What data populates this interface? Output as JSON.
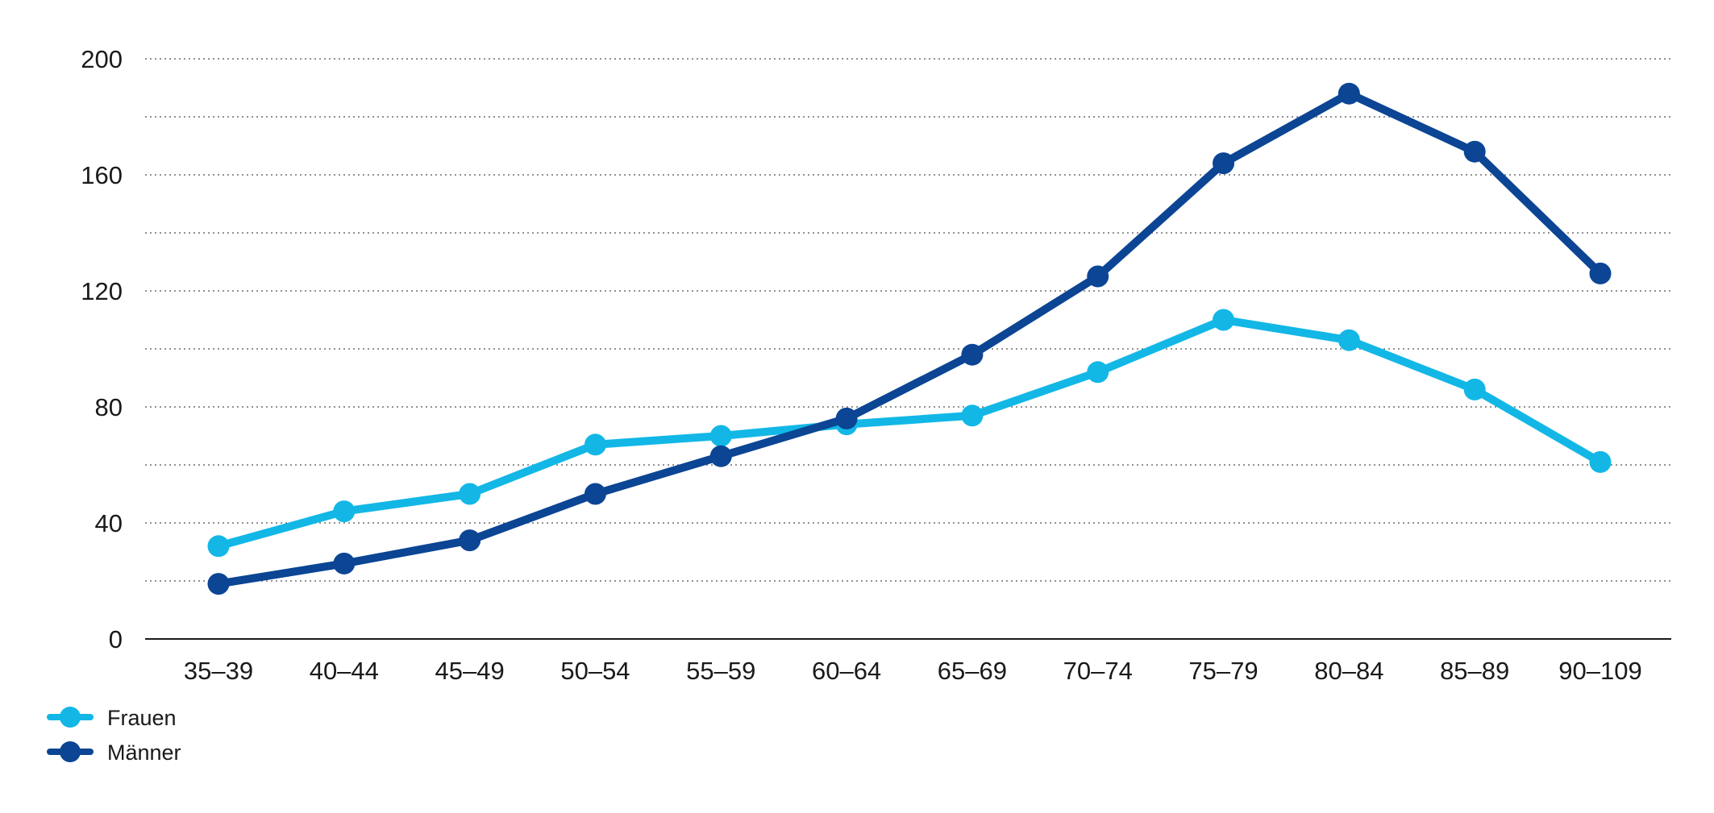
{
  "chart_data": {
    "type": "line",
    "categories": [
      "35–39",
      "40–44",
      "45–49",
      "50–54",
      "55–59",
      "60–64",
      "65–69",
      "70–74",
      "75–79",
      "80–84",
      "85–89",
      "90–109"
    ],
    "series": [
      {
        "name": "Frauen",
        "color": "#12b7e6",
        "values": [
          32,
          44,
          50,
          67,
          70,
          74,
          77,
          92,
          110,
          103,
          86,
          61
        ]
      },
      {
        "name": "Männer",
        "color": "#0b4594",
        "values": [
          19,
          26,
          34,
          50,
          63,
          76,
          98,
          125,
          164,
          188,
          168,
          126
        ]
      }
    ],
    "y_ticks": [
      "0",
      "40",
      "80",
      "120",
      "160",
      "200"
    ],
    "ylim": [
      0,
      200
    ],
    "grid": true,
    "grid_style": "dotted",
    "legend_position": "bottom-left"
  }
}
